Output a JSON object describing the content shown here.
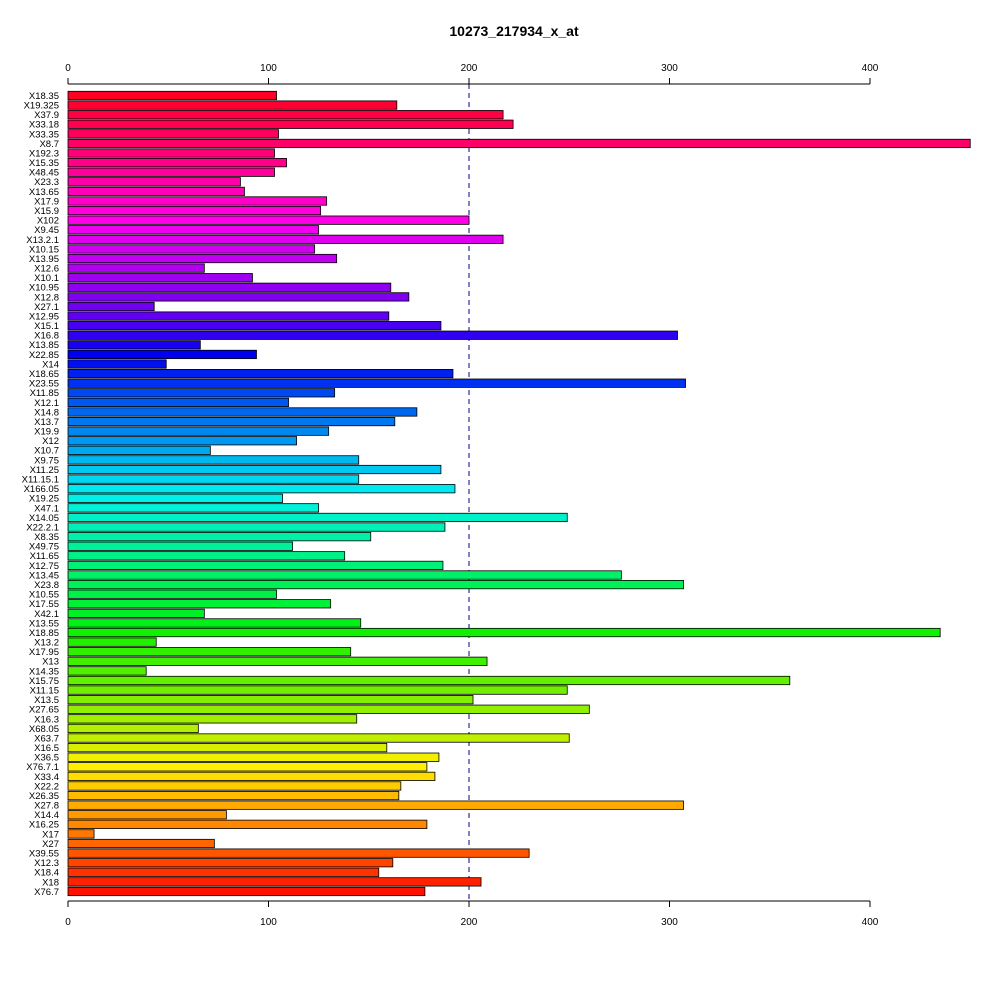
{
  "chart_data": {
    "type": "bar",
    "orientation": "horizontal",
    "title": "10273_217934_x_at",
    "xlabel": "",
    "ylabel": "",
    "xlim": [
      0,
      450
    ],
    "x_ticks": [
      0,
      100,
      200,
      300,
      400
    ],
    "axes": "top and bottom",
    "reference_line": {
      "x": 200,
      "style": "dashed",
      "color": "#00008b"
    },
    "grid": false,
    "legend": "none",
    "categories": [
      "X18.35",
      "X19.325",
      "X37.9",
      "X33.18",
      "X33.35",
      "X8.7",
      "X192.3",
      "X15.35",
      "X48.45",
      "X23.3",
      "X13.65",
      "X17.9",
      "X15.9",
      "X102",
      "X9.45",
      "X13.2.1",
      "X10.15",
      "X13.95",
      "X12.6",
      "X10.1",
      "X10.95",
      "X12.8",
      "X27.1",
      "X12.95",
      "X15.1",
      "X16.8",
      "X13.85",
      "X22.85",
      "X14",
      "X18.65",
      "X23.55",
      "X11.85",
      "X12.1",
      "X14.8",
      "X13.7",
      "X19.9",
      "X12",
      "X10.7",
      "X9.75",
      "X11.25",
      "X11.15.1",
      "X166.05",
      "X19.25",
      "X47.1",
      "X14.05",
      "X22.2.1",
      "X8.35",
      "X49.75",
      "X11.65",
      "X12.75",
      "X13.45",
      "X23.8",
      "X10.55",
      "X17.55",
      "X42.1",
      "X13.55",
      "X18.85",
      "X13.2",
      "X17.95",
      "X13",
      "X14.35",
      "X15.75",
      "X11.15",
      "X13.5",
      "X27.65",
      "X16.3",
      "X68.05",
      "X63.7",
      "X16.5",
      "X36.5",
      "X76.7.1",
      "X33.4",
      "X22.2",
      "X26.35",
      "X27.8",
      "X14.4",
      "X16.25",
      "X17",
      "X27",
      "X39.55",
      "X12.3",
      "X18.4",
      "X18",
      "X76.7"
    ],
    "values": [
      104,
      164,
      217,
      222,
      105,
      450,
      103,
      109,
      103,
      86,
      88,
      129,
      126,
      200,
      125,
      217,
      123,
      134,
      68,
      92,
      161,
      170,
      43,
      160,
      186,
      304,
      66,
      94,
      49,
      192,
      308,
      133,
      110,
      174,
      163,
      130,
      114,
      71,
      145,
      186,
      145,
      193,
      107,
      125,
      249,
      188,
      151,
      112,
      138,
      187,
      276,
      307,
      104,
      131,
      68,
      146,
      435,
      44,
      141,
      209,
      39,
      360,
      249,
      202,
      260,
      144,
      65,
      250,
      159,
      185,
      179,
      183,
      166,
      165,
      307,
      79,
      179,
      13,
      73,
      230,
      162,
      155,
      206,
      178
    ],
    "colors": [
      "#ff0022",
      "#ff0033",
      "#ff0040",
      "#ff0050",
      "#ff005c",
      "#ff0068",
      "#ff0078",
      "#ff0088",
      "#ff0098",
      "#ff00a8",
      "#ff00b8",
      "#ff00c8",
      "#ff00d8",
      "#ff00e8",
      "#f000f0",
      "#e000f0",
      "#d000f0",
      "#c000f0",
      "#b000f0",
      "#a000f0",
      "#9000f0",
      "#8000f0",
      "#7000f0",
      "#6000f0",
      "#4800f0",
      "#3000f0",
      "#1800f0",
      "#0000f0",
      "#0010f0",
      "#0020f0",
      "#0030f0",
      "#0048f0",
      "#0058f0",
      "#0068f0",
      "#0078f0",
      "#0088f0",
      "#0098f0",
      "#00a8f0",
      "#00b8f0",
      "#00c8f0",
      "#00d8f0",
      "#00e8f0",
      "#00f0e8",
      "#00f0d8",
      "#00f0c8",
      "#00f0b8",
      "#00f0a8",
      "#00f098",
      "#00f088",
      "#00f078",
      "#00f068",
      "#00f058",
      "#00f048",
      "#00f038",
      "#00f028",
      "#00f018",
      "#10f000",
      "#20f000",
      "#30f000",
      "#40f000",
      "#50f000",
      "#60f000",
      "#70f000",
      "#80f000",
      "#90f000",
      "#a0f000",
      "#b0f000",
      "#c0f000",
      "#d8f000",
      "#f0f000",
      "#ffee00",
      "#ffdd00",
      "#ffcc00",
      "#ffbb00",
      "#ffaa00",
      "#ff9900",
      "#ff8800",
      "#ff7700",
      "#ff6600",
      "#ff5500",
      "#ff4400",
      "#ff3300",
      "#ff2200",
      "#ff1100"
    ]
  }
}
